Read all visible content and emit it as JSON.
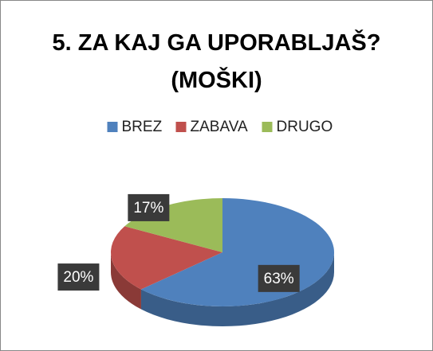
{
  "chart_data": {
    "type": "pie",
    "title": "5. ZA KAJ GA UPORABLJAŠ? (MOŠKI)",
    "categories": [
      "BREZ",
      "ZABAVA",
      "DRUGO"
    ],
    "values": [
      63,
      20,
      17
    ],
    "value_labels": [
      "63%",
      "20%",
      "17%"
    ],
    "colors": [
      "#4f81bd",
      "#c0504d",
      "#9bbb59"
    ],
    "legend": "top"
  }
}
